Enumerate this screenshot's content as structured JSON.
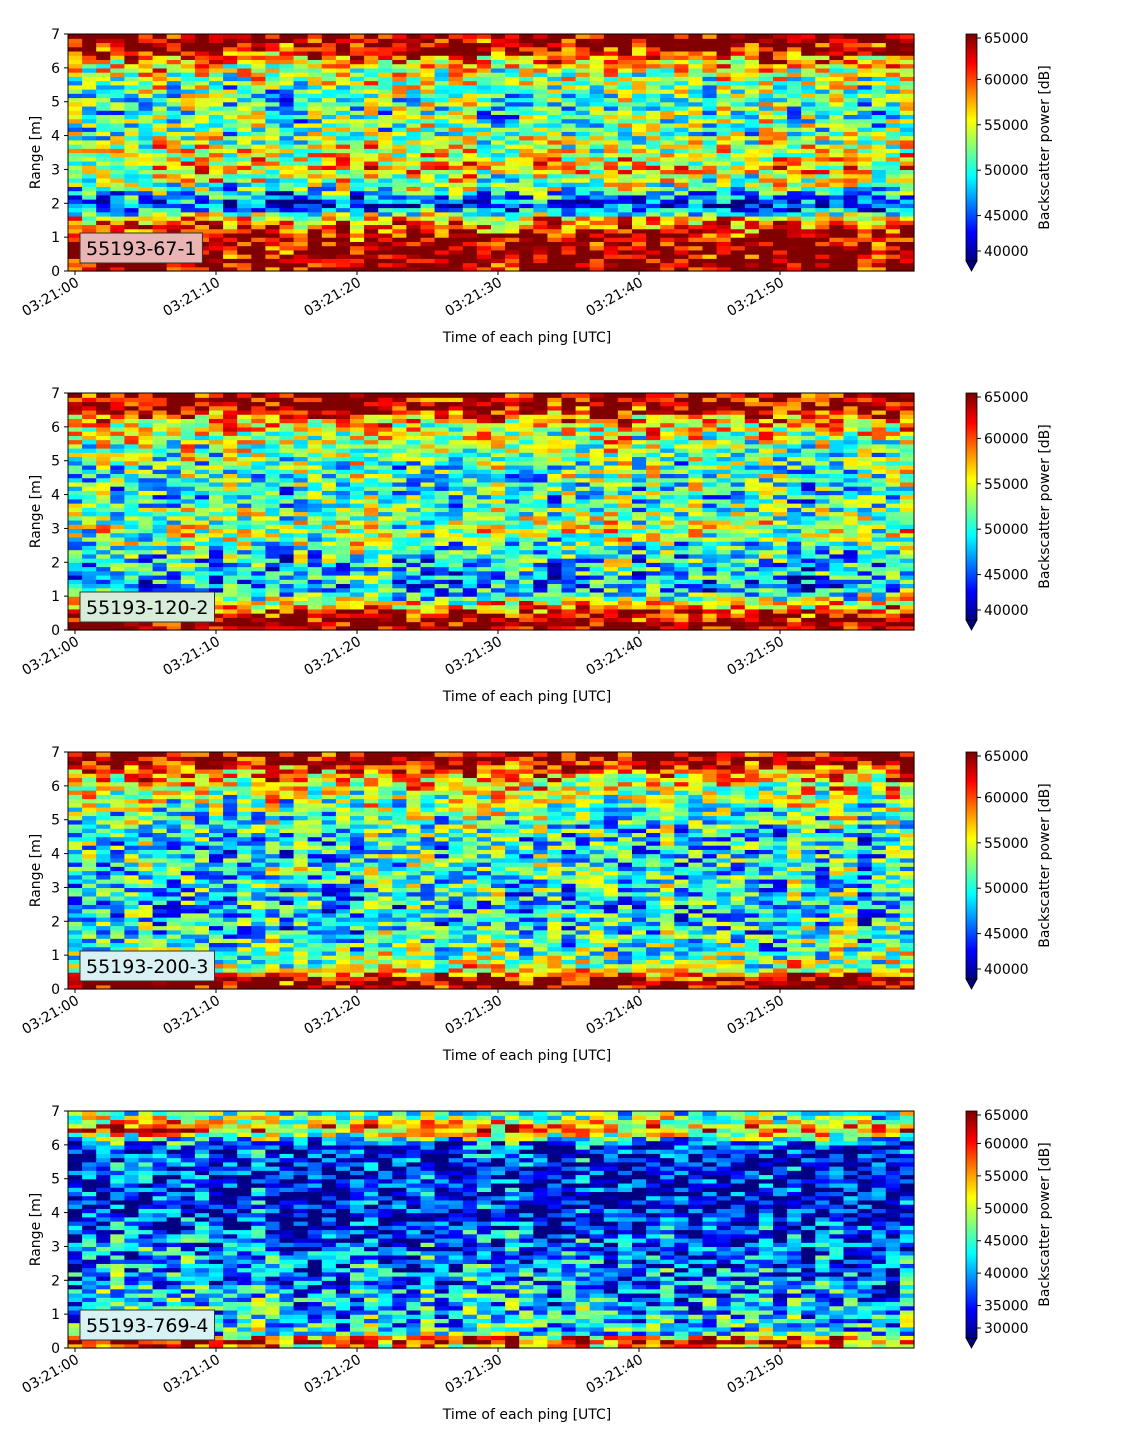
{
  "figure": {
    "x_tick_labels": [
      "03:21:00",
      "03:21:10",
      "03:21:20",
      "03:21:30",
      "03:21:40",
      "03:21:50"
    ]
  },
  "colormap": "jet",
  "chart_data": [
    {
      "type": "heatmap",
      "panel_label": "55193-67-1",
      "label_box_color": "#e8b4b4",
      "xlabel": "Time of each ping [UTC]",
      "ylabel": "Range [m]",
      "x_range": [
        "03:21:00",
        "03:22:00"
      ],
      "ylim": [
        0,
        7
      ],
      "y_ticks": [
        0,
        1,
        2,
        3,
        4,
        5,
        6,
        7
      ],
      "colorbar": {
        "label": "Backscatter power [dB]",
        "vmin": 40000,
        "vmax": 65000,
        "ticks": [
          40000,
          45000,
          50000,
          55000,
          60000,
          65000
        ],
        "extend": "min"
      },
      "profile": [
        {
          "range_m": 0.1,
          "level": 1.0
        },
        {
          "range_m": 0.6,
          "level": 1.0
        },
        {
          "range_m": 1.1,
          "level": 0.92
        },
        {
          "range_m": 1.5,
          "level": 0.75
        },
        {
          "range_m": 1.9,
          "level": 0.1
        },
        {
          "range_m": 2.5,
          "level": 0.48
        },
        {
          "range_m": 3.0,
          "level": 0.65
        },
        {
          "range_m": 4.0,
          "level": 0.5
        },
        {
          "range_m": 5.0,
          "level": 0.42
        },
        {
          "range_m": 6.0,
          "level": 0.6
        },
        {
          "range_m": 6.6,
          "level": 0.95
        },
        {
          "range_m": 7.0,
          "level": 1.0
        }
      ]
    },
    {
      "type": "heatmap",
      "panel_label": "55193-120-2",
      "label_box_color": "#d7ecd9",
      "xlabel": "Time of each ping [UTC]",
      "ylabel": "Range [m]",
      "x_range": [
        "03:21:00",
        "03:22:00"
      ],
      "ylim": [
        0,
        7
      ],
      "y_ticks": [
        0,
        1,
        2,
        3,
        4,
        5,
        6,
        7
      ],
      "colorbar": {
        "label": "Backscatter power [dB]",
        "vmin": 40000,
        "vmax": 65000,
        "ticks": [
          40000,
          45000,
          50000,
          55000,
          60000,
          65000
        ],
        "extend": "min"
      },
      "profile": [
        {
          "range_m": 0.1,
          "level": 1.0
        },
        {
          "range_m": 0.4,
          "level": 1.0
        },
        {
          "range_m": 0.6,
          "level": 0.8
        },
        {
          "range_m": 1.2,
          "level": 0.3
        },
        {
          "range_m": 2.0,
          "level": 0.35
        },
        {
          "range_m": 3.0,
          "level": 0.55
        },
        {
          "range_m": 4.0,
          "level": 0.4
        },
        {
          "range_m": 5.0,
          "level": 0.45
        },
        {
          "range_m": 6.0,
          "level": 0.62
        },
        {
          "range_m": 6.6,
          "level": 0.95
        },
        {
          "range_m": 7.0,
          "level": 1.0
        }
      ]
    },
    {
      "type": "heatmap",
      "panel_label": "55193-200-3",
      "label_box_color": "#d8f2f4",
      "xlabel": "Time of each ping [UTC]",
      "ylabel": "Range [m]",
      "x_range": [
        "03:21:00",
        "03:22:00"
      ],
      "ylim": [
        0,
        7
      ],
      "y_ticks": [
        0,
        1,
        2,
        3,
        4,
        5,
        6,
        7
      ],
      "colorbar": {
        "label": "Backscatter power [dB]",
        "vmin": 40000,
        "vmax": 65000,
        "ticks": [
          40000,
          45000,
          50000,
          55000,
          60000,
          65000
        ],
        "extend": "min"
      },
      "profile": [
        {
          "range_m": 0.1,
          "level": 1.0
        },
        {
          "range_m": 0.35,
          "level": 0.95
        },
        {
          "range_m": 0.6,
          "level": 0.55
        },
        {
          "range_m": 1.5,
          "level": 0.4
        },
        {
          "range_m": 2.5,
          "level": 0.35
        },
        {
          "range_m": 3.5,
          "level": 0.4
        },
        {
          "range_m": 4.5,
          "level": 0.38
        },
        {
          "range_m": 5.5,
          "level": 0.5
        },
        {
          "range_m": 6.3,
          "level": 0.7
        },
        {
          "range_m": 6.7,
          "level": 0.95
        },
        {
          "range_m": 7.0,
          "level": 1.0
        }
      ]
    },
    {
      "type": "heatmap",
      "panel_label": "55193-769-4",
      "label_box_color": "#d8f2f4",
      "xlabel": "Time of each ping [UTC]",
      "ylabel": "Range [m]",
      "x_range": [
        "03:21:00",
        "03:22:00"
      ],
      "ylim": [
        0,
        7
      ],
      "y_ticks": [
        0,
        1,
        2,
        3,
        4,
        5,
        6,
        7
      ],
      "colorbar": {
        "label": "Backscatter power [dB]",
        "vmin": 30000,
        "vmax": 65000,
        "ticks": [
          30000,
          35000,
          40000,
          45000,
          50000,
          55000,
          60000,
          65000
        ],
        "extend": "min"
      },
      "profile": [
        {
          "range_m": 0.05,
          "level": 0.68
        },
        {
          "range_m": 0.25,
          "level": 1.0
        },
        {
          "range_m": 0.4,
          "level": 0.4
        },
        {
          "range_m": 1.5,
          "level": 0.3
        },
        {
          "range_m": 3.0,
          "level": 0.22
        },
        {
          "range_m": 4.0,
          "level": 0.12
        },
        {
          "range_m": 5.0,
          "level": 0.12
        },
        {
          "range_m": 6.0,
          "level": 0.15
        },
        {
          "range_m": 6.5,
          "level": 0.8
        },
        {
          "range_m": 6.8,
          "level": 0.5
        },
        {
          "range_m": 7.0,
          "level": 0.45
        }
      ]
    }
  ]
}
